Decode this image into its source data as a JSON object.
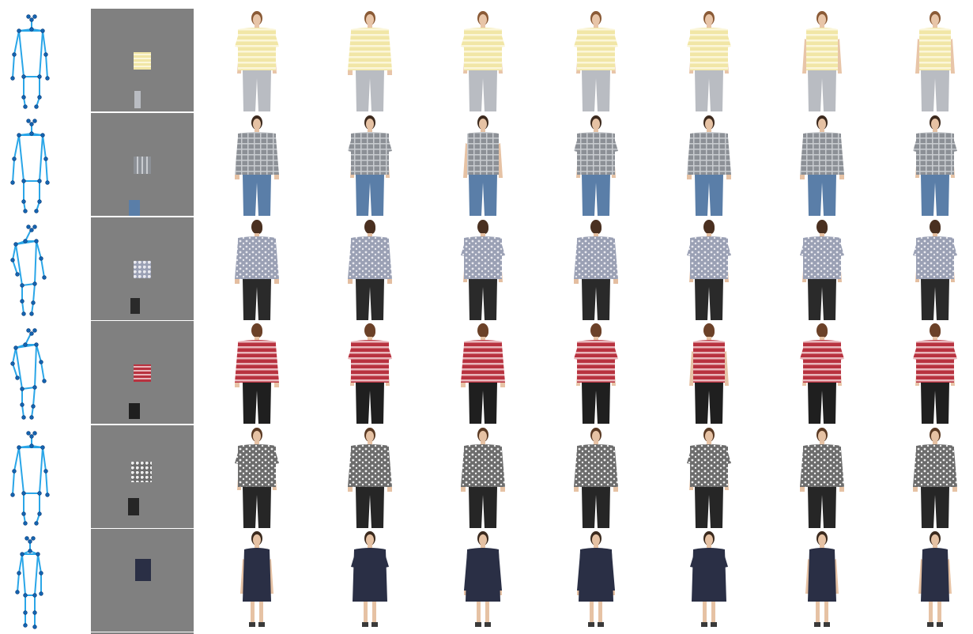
{
  "rows": [
    {
      "id": "yellow-stripe-tee",
      "pose": "front",
      "upper": "#f1e6a6",
      "upper_stripe": "#fbf6d9",
      "lower": "#b9bcc2",
      "hair": "#8a5a36",
      "skin": "#e8c5a8",
      "lower_len": "long",
      "facing": "front",
      "variants": [
        "short",
        "long",
        "short",
        "short",
        "short",
        "sleeveless",
        "sleeveless"
      ]
    },
    {
      "id": "grey-plaid-shirt",
      "pose": "front",
      "upper": "#8c9096",
      "upper_stripe": "#c9ccd0",
      "lower": "#5a7ea8",
      "hair": "#3d2a1e",
      "skin": "#e6c2a4",
      "lower_len": "long",
      "facing": "front",
      "variants": [
        "long",
        "short",
        "sleeveless",
        "short",
        "long",
        "long",
        "short"
      ]
    },
    {
      "id": "floral-print-blouse",
      "pose": "side",
      "upper": "#9aa0b4",
      "upper_stripe": "#e9e9ef",
      "lower": "#2a2a2a",
      "hair": "#4a3020",
      "skin": "#e4bea0",
      "lower_len": "long",
      "facing": "back",
      "variants": [
        "long",
        "long",
        "short",
        "long",
        "short",
        "short",
        "short"
      ]
    },
    {
      "id": "red-stripe-tee",
      "pose": "side",
      "upper": "#b8323f",
      "upper_stripe": "#e9b6bb",
      "lower": "#1f1f1f",
      "hair": "#6b4128",
      "skin": "#e7c3a6",
      "lower_len": "long",
      "facing": "back",
      "variants": [
        "long",
        "short",
        "long",
        "short",
        "sleeveless",
        "short",
        "short"
      ]
    },
    {
      "id": "leopard-print-top",
      "pose": "front",
      "upper": "#6c6c6c",
      "upper_stripe": "#eeeeee",
      "lower": "#262626",
      "hair": "#5a3a24",
      "skin": "#e6c2a4",
      "lower_len": "long",
      "facing": "front",
      "variants": [
        "short",
        "long",
        "long",
        "long",
        "short",
        "long",
        "long"
      ]
    },
    {
      "id": "navy-dress",
      "pose": "slim",
      "upper": "#2a2f45",
      "upper_stripe": "#2a2f45",
      "lower": "#2a2f45",
      "hair": "#3b2a1e",
      "skin": "#e6c2a4",
      "lower_len": "dress",
      "facing": "front",
      "variants": [
        "sleeveless",
        "short",
        "long",
        "long",
        "short",
        "sleeveless",
        "sleeveless"
      ]
    }
  ]
}
